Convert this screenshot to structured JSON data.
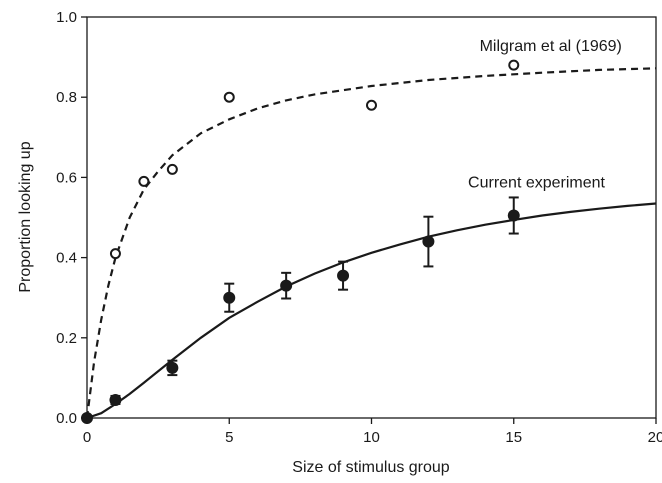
{
  "chart_data": {
    "type": "scatter",
    "title": "",
    "xlabel": "Size of stimulus group",
    "ylabel": "Proportion looking up",
    "xlim": [
      0,
      20
    ],
    "ylim": [
      0,
      1.0
    ],
    "x_ticks": [
      0,
      5,
      10,
      15,
      20
    ],
    "x_tick_labels": [
      "0",
      "5",
      "10",
      "15",
      "20"
    ],
    "y_ticks": [
      0.0,
      0.2,
      0.4,
      0.6,
      0.8,
      1.0
    ],
    "y_tick_labels": [
      "0.0",
      "0.2",
      "0.4",
      "0.6",
      "0.8",
      "1.0"
    ],
    "grid": false,
    "legend": "none",
    "series": [
      {
        "name": "Milgram et al (1969)",
        "marker": "open-circle",
        "points": [
          {
            "x": 0,
            "y": 0.0
          },
          {
            "x": 1,
            "y": 0.41
          },
          {
            "x": 2,
            "y": 0.59
          },
          {
            "x": 3,
            "y": 0.62
          },
          {
            "x": 5,
            "y": 0.8
          },
          {
            "x": 10,
            "y": 0.78
          },
          {
            "x": 15,
            "y": 0.88
          }
        ],
        "fit": {
          "style": "dashed",
          "x": [
            0,
            0.25,
            0.5,
            0.75,
            1,
            1.5,
            2,
            2.5,
            3,
            4,
            5,
            6,
            7,
            8,
            10,
            12,
            14,
            16,
            18,
            20
          ],
          "y": [
            0.0,
            0.14,
            0.245,
            0.33,
            0.4,
            0.5,
            0.57,
            0.615,
            0.655,
            0.71,
            0.745,
            0.772,
            0.792,
            0.807,
            0.828,
            0.843,
            0.853,
            0.861,
            0.868,
            0.872
          ]
        }
      },
      {
        "name": "Current experiment",
        "marker": "filled-circle",
        "points": [
          {
            "x": 0,
            "y": 0.0
          },
          {
            "x": 1,
            "y": 0.045,
            "err": 0.01
          },
          {
            "x": 3,
            "y": 0.125,
            "err": 0.018
          },
          {
            "x": 5,
            "y": 0.3,
            "err": 0.035
          },
          {
            "x": 7,
            "y": 0.33,
            "err": 0.032
          },
          {
            "x": 9,
            "y": 0.355,
            "err": 0.035
          },
          {
            "x": 12,
            "y": 0.44,
            "err": 0.062
          },
          {
            "x": 15,
            "y": 0.505,
            "err": 0.045
          }
        ],
        "fit": {
          "style": "solid",
          "x": [
            0,
            0.5,
            1,
            1.5,
            2,
            3,
            4,
            5,
            6,
            7,
            8,
            9,
            10,
            11,
            12,
            13,
            14,
            15,
            16,
            17,
            18,
            19,
            20
          ],
          "y": [
            0.0,
            0.012,
            0.035,
            0.06,
            0.088,
            0.145,
            0.2,
            0.25,
            0.29,
            0.328,
            0.36,
            0.388,
            0.412,
            0.433,
            0.452,
            0.468,
            0.482,
            0.494,
            0.505,
            0.514,
            0.522,
            0.529,
            0.535
          ]
        }
      }
    ],
    "annotations": [
      {
        "text": "Milgram et al (1969)",
        "x": 16.3,
        "y": 0.915
      },
      {
        "text": "Current experiment",
        "x": 15.8,
        "y": 0.575
      }
    ],
    "colors": {
      "ink": "#1a1a1a",
      "background": "#ffffff"
    }
  }
}
